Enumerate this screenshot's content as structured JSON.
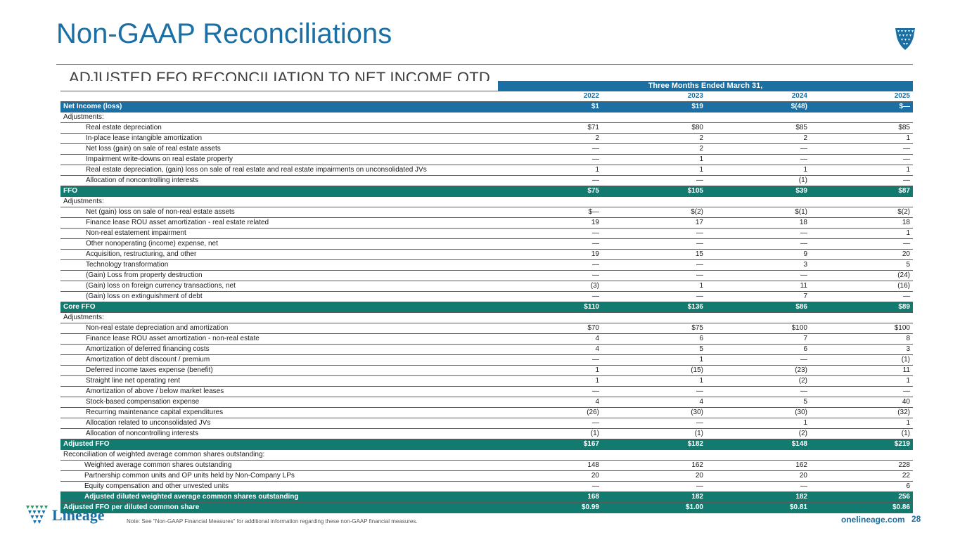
{
  "title": "Non-GAAP Reconciliations",
  "subtitle": "ADJUSTED FFO RECONCILIATION TO NET INCOME QTD",
  "period_header": "Three Months Ended March 31,",
  "years": [
    "2022",
    "2023",
    "2024",
    "2025"
  ],
  "rows": {
    "net_income": {
      "label": "Net Income (loss)",
      "v": [
        "$1",
        "$19",
        "$(48)",
        "$—"
      ]
    },
    "adj1": {
      "label": "Adjustments:"
    },
    "r1": {
      "label": "Real estate depreciation",
      "v": [
        "$71",
        "$80",
        "$85",
        "$85"
      ]
    },
    "r2": {
      "label": "In-place lease intangible amortization",
      "v": [
        "2",
        "2",
        "2",
        "1"
      ]
    },
    "r3": {
      "label": "Net loss (gain) on sale of real estate assets",
      "v": [
        "—",
        "2",
        "—",
        "—"
      ]
    },
    "r4": {
      "label": "Impairment write-downs on real estate property",
      "v": [
        "—",
        "1",
        "—",
        "—"
      ]
    },
    "r5": {
      "label": "Real estate depreciation, (gain) loss on sale of real estate and real estate impairments on unconsolidated JVs",
      "v": [
        "1",
        "1",
        "1",
        "1"
      ]
    },
    "r6": {
      "label": "Allocation of noncontrolling interests",
      "v": [
        "—",
        "—",
        "(1)",
        "—"
      ]
    },
    "ffo": {
      "label": "FFO",
      "v": [
        "$75",
        "$105",
        "$39",
        "$87"
      ]
    },
    "adj2": {
      "label": "Adjustments:"
    },
    "s1": {
      "label": "Net (gain) loss on sale of non-real estate assets",
      "v": [
        "$—",
        "$(2)",
        "$(1)",
        "$(2)"
      ]
    },
    "s2": {
      "label": "Finance lease ROU asset amortization - real estate related",
      "v": [
        "19",
        "17",
        "18",
        "18"
      ]
    },
    "s3": {
      "label": "Non-real estatement impairment",
      "v": [
        "—",
        "—",
        "—",
        "1"
      ]
    },
    "s4": {
      "label": "Other nonoperating (income) expense, net",
      "v": [
        "—",
        "—",
        "—",
        "—"
      ]
    },
    "s5": {
      "label": "Acquisition, restructuring, and other",
      "v": [
        "19",
        "15",
        "9",
        "20"
      ]
    },
    "s6": {
      "label": "Technology transformation",
      "v": [
        "—",
        "—",
        "3",
        "5"
      ]
    },
    "s7": {
      "label": "(Gain) Loss from property destruction",
      "v": [
        "—",
        "—",
        "—",
        "(24)"
      ]
    },
    "s8": {
      "label": "(Gain) loss on foreign currency transactions, net",
      "v": [
        "(3)",
        "1",
        "11",
        "(16)"
      ]
    },
    "s9": {
      "label": "(Gain) loss on extinguishment of debt",
      "v": [
        "—",
        "—",
        "7",
        "—"
      ]
    },
    "core_ffo": {
      "label": "Core FFO",
      "v": [
        "$110",
        "$136",
        "$86",
        "$89"
      ]
    },
    "adj3": {
      "label": "Adjustments:"
    },
    "t1": {
      "label": "Non-real estate depreciation and amortization",
      "v": [
        "$70",
        "$75",
        "$100",
        "$100"
      ]
    },
    "t2": {
      "label": "Finance lease ROU asset amortization - non-real estate",
      "v": [
        "4",
        "6",
        "7",
        "8"
      ]
    },
    "t3": {
      "label": "Amortization of deferred financing costs",
      "v": [
        "4",
        "5",
        "6",
        "3"
      ]
    },
    "t4": {
      "label": "Amortization of debt discount / premium",
      "v": [
        "—",
        "1",
        "—",
        "(1)"
      ]
    },
    "t5": {
      "label": "Deferred income taxes expense (benefit)",
      "v": [
        "1",
        "(15)",
        "(23)",
        "11"
      ]
    },
    "t6": {
      "label": "Straight line net operating rent",
      "v": [
        "1",
        "1",
        "(2)",
        "1"
      ]
    },
    "t7": {
      "label": "Amortization of above / below market leases",
      "v": [
        "—",
        "—",
        "—",
        "—"
      ]
    },
    "t8": {
      "label": "Stock-based compensation expense",
      "v": [
        "4",
        "4",
        "5",
        "40"
      ]
    },
    "t9": {
      "label": "Recurring maintenance capital expenditures",
      "v": [
        "(26)",
        "(30)",
        "(30)",
        "(32)"
      ]
    },
    "t10": {
      "label": "Allocation related to unconsolidated JVs",
      "v": [
        "—",
        "—",
        "1",
        "1"
      ]
    },
    "t11": {
      "label": "Allocation of noncontrolling interests",
      "v": [
        "(1)",
        "(1)",
        "(2)",
        "(1)"
      ]
    },
    "adj_ffo": {
      "label": "Adjusted FFO",
      "v": [
        "$167",
        "$182",
        "$148",
        "$219"
      ]
    },
    "recon": {
      "label": "Reconciliation of weighted average common shares outstanding:"
    },
    "u1": {
      "label": "Weighted average common shares outstanding",
      "v": [
        "148",
        "162",
        "162",
        "228"
      ]
    },
    "u2": {
      "label": "Partnership common units and OP units held by Non-Company LPs",
      "v": [
        "20",
        "20",
        "20",
        "22"
      ]
    },
    "u3": {
      "label": "Equity compensation and other unvested units",
      "v": [
        "—",
        "—",
        "—",
        "6"
      ]
    },
    "u4": {
      "label": "Adjusted diluted weighted average common shares outstanding",
      "v": [
        "168",
        "182",
        "182",
        "256"
      ]
    },
    "per_share": {
      "label": "Adjusted FFO per diluted common share",
      "v": [
        "$0.99",
        "$1.00",
        "$0.81",
        "$0.86"
      ]
    }
  },
  "footer": {
    "logo_text": "Lineage",
    "note": "Note: See \"Non-GAAP Financial Measures\" for additional information regarding these non-GAAP financial measures.",
    "site": "onelineage.com",
    "page": "28"
  },
  "colors": {
    "brand_blue": "#1b6fa3",
    "brand_green": "#127a6e",
    "logo_green": "#2a9d6f"
  }
}
